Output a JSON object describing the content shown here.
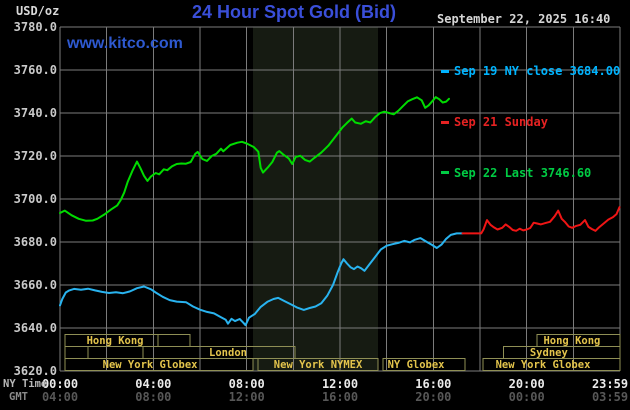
{
  "header": {
    "units_label": "USD/oz",
    "title": "24 Hour Spot Gold (Bid)",
    "watermark": "www.kitco.com",
    "datetime": "September 22, 2025 16:40"
  },
  "legend": [
    {
      "label": "Sep 19 NY close 3684.00",
      "color": "#00b4ff"
    },
    {
      "label": "Sep 21 Sunday",
      "color": "#e62222"
    },
    {
      "label": "Sep 22 Last 3746.60",
      "color": "#00cc44"
    }
  ],
  "axes": {
    "x_primary_label": "NY Time",
    "x_secondary_label": "GMT",
    "y_ticks": [
      "3780.0",
      "3760.0",
      "3740.0",
      "3720.0",
      "3700.0",
      "3680.0",
      "3660.0",
      "3640.0",
      "3620.0"
    ],
    "x_ticks": [
      {
        "ny": "00:00",
        "gmt": "04:00",
        "h": 0
      },
      {
        "ny": "04:00",
        "gmt": "08:00",
        "h": 4
      },
      {
        "ny": "08:00",
        "gmt": "12:00",
        "h": 8
      },
      {
        "ny": "12:00",
        "gmt": "16:00",
        "h": 12
      },
      {
        "ny": "16:00",
        "gmt": "20:00",
        "h": 16
      },
      {
        "ny": "20:00",
        "gmt": "00:00",
        "h": 20
      },
      {
        "ny": "23:59",
        "gmt": "03:59",
        "h": 23.983
      }
    ]
  },
  "sessions": {
    "rows": [
      {
        "row": 1,
        "boxes": [
          {
            "start_h": 0.21,
            "end_h": 4.2,
            "label": "Hong Kong",
            "label_h": 2.36
          },
          {
            "start_h": 4.2,
            "end_h": 5.57,
            "label": ""
          },
          {
            "start_h": 20.44,
            "end_h": 24,
            "label": "Hong Kong",
            "label_h": 21.94
          }
        ]
      },
      {
        "row": 2,
        "boxes": [
          {
            "start_h": 0.21,
            "end_h": 1.2,
            "label": ""
          },
          {
            "start_h": 1.2,
            "end_h": 3.56,
            "label": ""
          },
          {
            "start_h": 3.56,
            "end_h": 10.07,
            "label": "London",
            "label_h": 7.2
          },
          {
            "start_h": 19.0,
            "end_h": 24,
            "label": "Sydney",
            "label_h": 20.95
          }
        ]
      },
      {
        "row": 3,
        "boxes": [
          {
            "start_h": 0.21,
            "end_h": 8.27,
            "label": "New York Globex",
            "label_h": 3.86
          },
          {
            "start_h": 8.49,
            "end_h": 13.63,
            "label": "New York NYMEX"
          },
          {
            "start_h": 13.84,
            "end_h": 17.36,
            "label": "NY Globex",
            "label_h": 15.26
          },
          {
            "start_h": 18.13,
            "end_h": 24,
            "label": "New York Globex",
            "label_h": 20.7
          }
        ]
      }
    ]
  },
  "colors": {
    "background": "#000000",
    "grid": "#7b7b7b",
    "band": "#161b12",
    "session_border": "#8f8f55",
    "session_text": "#e3c44c",
    "y_tick_text": "#c9c9c9",
    "x_tick_primary": "#ebebeb",
    "x_tick_secondary": "#575757"
  },
  "chart_data": {
    "type": "line",
    "title": "24 Hour Spot Gold (Bid)",
    "xlabel": "NY Time",
    "ylabel": "USD/oz",
    "x_range_hours": [
      0,
      24
    ],
    "ylim": [
      3620,
      3780
    ],
    "y_tick_step": 20,
    "x_tick_step_hours": 2,
    "grid": true,
    "legend_position": "top-right",
    "highlight_band_hours": [
      8.27,
      13.63
    ],
    "series": [
      {
        "name": "Sep 19 NY close",
        "close_value": 3684.0,
        "color": "#29b3ef",
        "points": [
          [
            0,
            3650.5
          ],
          [
            0.1,
            3653.5
          ],
          [
            0.25,
            3656.5
          ],
          [
            0.4,
            3657.5
          ],
          [
            0.6,
            3658.2
          ],
          [
            0.9,
            3657.8
          ],
          [
            1.2,
            3658.3
          ],
          [
            1.5,
            3657.5
          ],
          [
            1.8,
            3656.8
          ],
          [
            2.1,
            3656.3
          ],
          [
            2.4,
            3656.6
          ],
          [
            2.7,
            3656.2
          ],
          [
            3.0,
            3657
          ],
          [
            3.3,
            3658.5
          ],
          [
            3.6,
            3659.3
          ],
          [
            3.9,
            3658
          ],
          [
            4.1,
            3656.5
          ],
          [
            4.4,
            3654.5
          ],
          [
            4.7,
            3653
          ],
          [
            5.0,
            3652.3
          ],
          [
            5.4,
            3652
          ],
          [
            5.7,
            3650
          ],
          [
            6.0,
            3648.5
          ],
          [
            6.3,
            3647.5
          ],
          [
            6.6,
            3646.8
          ],
          [
            6.9,
            3645
          ],
          [
            7.1,
            3643.8
          ],
          [
            7.2,
            3642
          ],
          [
            7.35,
            3644.3
          ],
          [
            7.5,
            3643.2
          ],
          [
            7.7,
            3644.2
          ],
          [
            7.85,
            3642.5
          ],
          [
            7.95,
            3641.3
          ],
          [
            8.1,
            3644.8
          ],
          [
            8.35,
            3646.5
          ],
          [
            8.6,
            3649.8
          ],
          [
            8.9,
            3652.3
          ],
          [
            9.15,
            3653.5
          ],
          [
            9.35,
            3654
          ],
          [
            9.6,
            3652.6
          ],
          [
            9.9,
            3651
          ],
          [
            10.15,
            3649.6
          ],
          [
            10.45,
            3648.4
          ],
          [
            10.7,
            3649.3
          ],
          [
            10.95,
            3650
          ],
          [
            11.2,
            3651.5
          ],
          [
            11.45,
            3655
          ],
          [
            11.7,
            3660
          ],
          [
            11.9,
            3666
          ],
          [
            12.05,
            3670
          ],
          [
            12.15,
            3672
          ],
          [
            12.3,
            3670
          ],
          [
            12.45,
            3668.3
          ],
          [
            12.6,
            3667.4
          ],
          [
            12.75,
            3668.6
          ],
          [
            12.9,
            3667.8
          ],
          [
            13.05,
            3666.6
          ],
          [
            13.25,
            3669.5
          ],
          [
            13.5,
            3673
          ],
          [
            13.75,
            3676.5
          ],
          [
            14.0,
            3678.3
          ],
          [
            14.25,
            3679
          ],
          [
            14.5,
            3679.6
          ],
          [
            14.75,
            3680.5
          ],
          [
            15.0,
            3679.8
          ],
          [
            15.2,
            3681
          ],
          [
            15.45,
            3681.8
          ],
          [
            15.7,
            3680.2
          ],
          [
            15.95,
            3678.6
          ],
          [
            16.15,
            3677.2
          ],
          [
            16.35,
            3678.8
          ],
          [
            16.55,
            3681.5
          ],
          [
            16.75,
            3683.3
          ],
          [
            17.0,
            3684
          ],
          [
            17.25,
            3684
          ]
        ]
      },
      {
        "name": "Sep 21 Sunday",
        "color": "#ef1515",
        "points": [
          [
            17.25,
            3684
          ],
          [
            18.05,
            3684
          ],
          [
            18.15,
            3685.8
          ],
          [
            18.3,
            3690.2
          ],
          [
            18.45,
            3688
          ],
          [
            18.6,
            3686.8
          ],
          [
            18.75,
            3685.8
          ],
          [
            18.95,
            3686.6
          ],
          [
            19.1,
            3688.2
          ],
          [
            19.25,
            3687
          ],
          [
            19.4,
            3685.6
          ],
          [
            19.55,
            3685.2
          ],
          [
            19.7,
            3686.2
          ],
          [
            19.85,
            3685.4
          ],
          [
            20.0,
            3685.8
          ],
          [
            20.15,
            3686.5
          ],
          [
            20.3,
            3689
          ],
          [
            20.45,
            3688.6
          ],
          [
            20.6,
            3688.2
          ],
          [
            20.8,
            3688.8
          ],
          [
            21.0,
            3689.4
          ],
          [
            21.2,
            3692
          ],
          [
            21.35,
            3694.6
          ],
          [
            21.5,
            3690.8
          ],
          [
            21.65,
            3689.2
          ],
          [
            21.8,
            3687.2
          ],
          [
            21.95,
            3686.6
          ],
          [
            22.1,
            3687.4
          ],
          [
            22.3,
            3688
          ],
          [
            22.5,
            3690.2
          ],
          [
            22.65,
            3687
          ],
          [
            22.8,
            3686
          ],
          [
            22.95,
            3685.2
          ],
          [
            23.1,
            3686.8
          ],
          [
            23.3,
            3688.6
          ],
          [
            23.5,
            3690.4
          ],
          [
            23.7,
            3691.6
          ],
          [
            23.85,
            3693
          ],
          [
            23.98,
            3696.2
          ]
        ]
      },
      {
        "name": "Sep 22 Last",
        "last_value": 3746.6,
        "color": "#00dc00",
        "points": [
          [
            0,
            3693.5
          ],
          [
            0.2,
            3694.6
          ],
          [
            0.5,
            3692.4
          ],
          [
            0.8,
            3690.8
          ],
          [
            1.1,
            3689.9
          ],
          [
            1.4,
            3690
          ],
          [
            1.6,
            3690.8
          ],
          [
            1.9,
            3692.8
          ],
          [
            2.2,
            3695.2
          ],
          [
            2.45,
            3697
          ],
          [
            2.6,
            3699.5
          ],
          [
            2.75,
            3703
          ],
          [
            2.9,
            3708
          ],
          [
            3.1,
            3713
          ],
          [
            3.3,
            3717.4
          ],
          [
            3.45,
            3714.3
          ],
          [
            3.6,
            3710.8
          ],
          [
            3.75,
            3708.4
          ],
          [
            3.9,
            3710.5
          ],
          [
            4.1,
            3712.1
          ],
          [
            4.25,
            3711.5
          ],
          [
            4.45,
            3713.8
          ],
          [
            4.6,
            3713.4
          ],
          [
            4.8,
            3715.2
          ],
          [
            5.0,
            3716.3
          ],
          [
            5.2,
            3716.5
          ],
          [
            5.4,
            3716.4
          ],
          [
            5.6,
            3717.2
          ],
          [
            5.8,
            3721
          ],
          [
            5.9,
            3721.9
          ],
          [
            6.1,
            3718.6
          ],
          [
            6.3,
            3717.7
          ],
          [
            6.5,
            3720
          ],
          [
            6.7,
            3721
          ],
          [
            6.9,
            3723.4
          ],
          [
            7.0,
            3722.2
          ],
          [
            7.3,
            3725.1
          ],
          [
            7.6,
            3726.2
          ],
          [
            7.8,
            3726.6
          ],
          [
            8.0,
            3725.8
          ],
          [
            8.3,
            3724.2
          ],
          [
            8.5,
            3722
          ],
          [
            8.6,
            3714.5
          ],
          [
            8.7,
            3712.3
          ],
          [
            8.9,
            3714.6
          ],
          [
            9.1,
            3717.2
          ],
          [
            9.3,
            3721.6
          ],
          [
            9.4,
            3722.3
          ],
          [
            9.6,
            3720.4
          ],
          [
            9.8,
            3718.9
          ],
          [
            9.95,
            3716.3
          ],
          [
            10.1,
            3719.6
          ],
          [
            10.3,
            3720.1
          ],
          [
            10.5,
            3718.2
          ],
          [
            10.7,
            3717.4
          ],
          [
            10.9,
            3719.1
          ],
          [
            11.2,
            3721.6
          ],
          [
            11.5,
            3724.8
          ],
          [
            11.8,
            3729
          ],
          [
            12.1,
            3733.2
          ],
          [
            12.3,
            3735.4
          ],
          [
            12.5,
            3737.4
          ],
          [
            12.65,
            3735.6
          ],
          [
            12.9,
            3735
          ],
          [
            13.1,
            3736.2
          ],
          [
            13.3,
            3735.6
          ],
          [
            13.5,
            3738
          ],
          [
            13.7,
            3739.9
          ],
          [
            13.9,
            3740.6
          ],
          [
            14.1,
            3740
          ],
          [
            14.3,
            3739.4
          ],
          [
            14.5,
            3741
          ],
          [
            14.7,
            3743.2
          ],
          [
            14.9,
            3745.4
          ],
          [
            15.1,
            3746.4
          ],
          [
            15.3,
            3747.3
          ],
          [
            15.5,
            3745.9
          ],
          [
            15.65,
            3742.4
          ],
          [
            15.8,
            3743.6
          ],
          [
            16.0,
            3746
          ],
          [
            16.1,
            3747.4
          ],
          [
            16.25,
            3746.4
          ],
          [
            16.4,
            3744.9
          ],
          [
            16.55,
            3745.3
          ],
          [
            16.67,
            3746.6
          ]
        ]
      }
    ]
  }
}
